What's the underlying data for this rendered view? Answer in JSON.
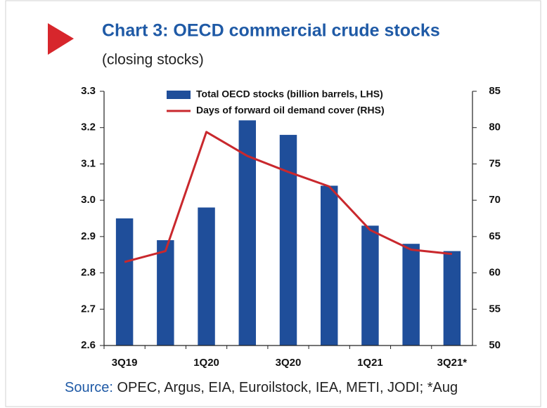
{
  "chart_data": {
    "type": "bar_line",
    "title": "Chart 3: OECD commercial crude stocks",
    "subtitle": "(closing stocks)",
    "source_label": "Source:",
    "source_text": "OPEC, Argus, EIA, Euroilstock, IEA, METI, JODI; *Aug",
    "categories": [
      "3Q19",
      null,
      "1Q20",
      null,
      "3Q20",
      null,
      "1Q21",
      null,
      "3Q21*"
    ],
    "series": [
      {
        "name": "Total OECD stocks (billion barrels, LHS)",
        "color": "#1f4e9a",
        "kind": "bar",
        "values": [
          2.95,
          2.89,
          2.98,
          3.22,
          3.18,
          3.04,
          2.93,
          2.88,
          2.86
        ]
      },
      {
        "name": "Days of forward oil demand cover (RHS)",
        "color": "#c9282d",
        "kind": "line",
        "axis": "y2",
        "values": [
          61.5,
          63,
          79.4,
          76.1,
          73.9,
          71.9,
          65.9,
          63.2,
          62.6
        ]
      }
    ],
    "ylim": [
      2.6,
      3.3
    ],
    "yticks": [
      2.6,
      2.7,
      2.8,
      2.9,
      {
        "value": 3,
        "label": "3.0"
      },
      3.1,
      3.2,
      3.3
    ],
    "y2lim": [
      50,
      85
    ],
    "y2ticks": [
      50,
      55,
      60,
      65,
      70,
      75,
      80,
      85
    ],
    "grid": false,
    "legend": "top"
  }
}
